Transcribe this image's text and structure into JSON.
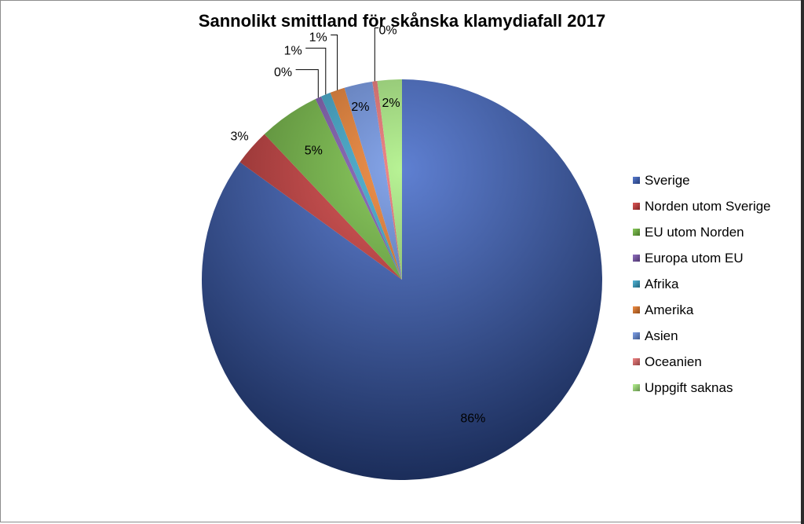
{
  "chart_data": {
    "type": "pie",
    "title": "Sannolikt smittland för skånska klamydiafall 2017",
    "categories": [
      "Sverige",
      "Norden utom Sverige",
      "EU utom Norden",
      "Europa utom EU",
      "Afrika",
      "Amerika",
      "Asien",
      "Oceanien",
      "Uppgift saknas"
    ],
    "values": [
      86,
      3,
      5,
      0.5,
      0.8,
      1.2,
      2.3,
      0.4,
      2
    ],
    "data_labels": [
      "86%",
      "3%",
      "5%",
      "0%",
      "1%",
      "1%",
      "2%",
      "0%",
      "2%"
    ],
    "colors": [
      "#3c64c8",
      "#d83a3a",
      "#74c23e",
      "#7e57b5",
      "#35a9d0",
      "#f07c27",
      "#6b93e6",
      "#ee6e6e",
      "#a9f07e"
    ],
    "legend_position": "right"
  }
}
